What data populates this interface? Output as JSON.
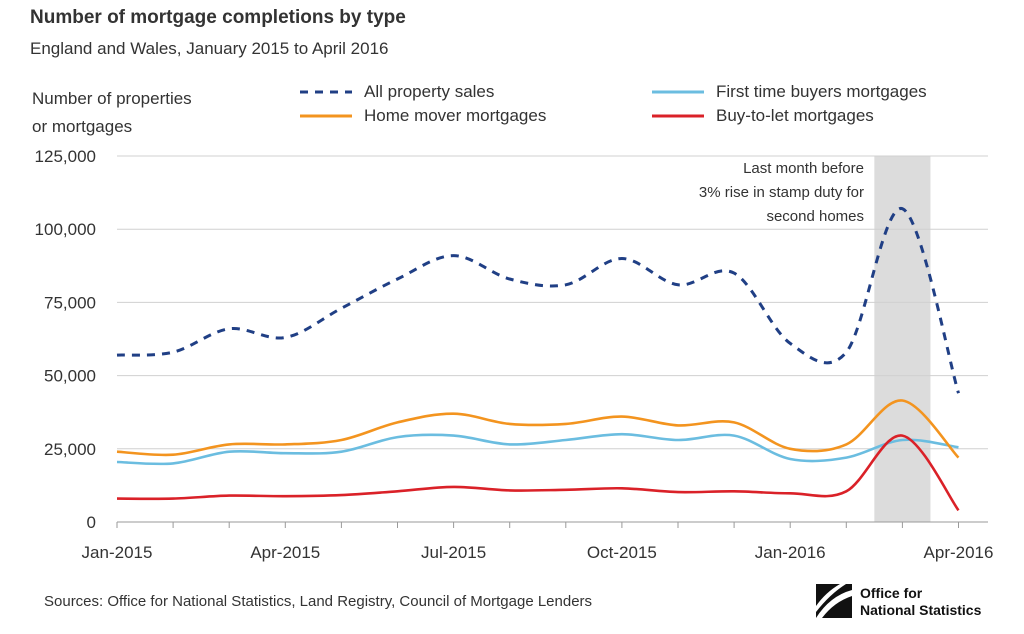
{
  "chart_data": {
    "type": "line",
    "title": "Number of mortgage completions by type",
    "subtitle": "England and Wales, January 2015 to April 2016",
    "ylabel": [
      "Number of properties",
      "or mortgages"
    ],
    "x": [
      "Jan-2015",
      "Feb-2015",
      "Mar-2015",
      "Apr-2015",
      "May-2015",
      "Jun-2015",
      "Jul-2015",
      "Aug-2015",
      "Sep-2015",
      "Oct-2015",
      "Nov-2015",
      "Dec-2015",
      "Jan-2016",
      "Feb-2016",
      "Mar-2016",
      "Apr-2016"
    ],
    "xticks": [
      "Jan-2015",
      "Apr-2015",
      "Jul-2015",
      "Oct-2015",
      "Jan-2016",
      "Apr-2016"
    ],
    "ylim": [
      0,
      125000
    ],
    "yticks": [
      0,
      25000,
      50000,
      75000,
      100000,
      125000
    ],
    "ytick_labels": [
      "0",
      "25,000",
      "50,000",
      "75,000",
      "100,000",
      "125,000"
    ],
    "grid": true,
    "legend_position": "top",
    "series": [
      {
        "name": "All property sales",
        "color": "#203f85",
        "dash": true,
        "values": [
          57000,
          58000,
          66000,
          63000,
          73000,
          83000,
          91000,
          83000,
          81000,
          90000,
          81000,
          85000,
          61000,
          58000,
          107000,
          44000
        ]
      },
      {
        "name": "First time buyers mortgages",
        "color": "#6bbde0",
        "dash": false,
        "values": [
          20500,
          20000,
          24000,
          23500,
          24000,
          29000,
          29500,
          26500,
          28000,
          30000,
          28000,
          29500,
          21500,
          22000,
          28000,
          25500
        ]
      },
      {
        "name": "Home mover mortgages",
        "color": "#f3941f",
        "dash": false,
        "values": [
          24000,
          23000,
          26500,
          26500,
          28000,
          34000,
          37000,
          33500,
          33500,
          36000,
          33000,
          34000,
          25000,
          26500,
          41500,
          22000
        ]
      },
      {
        "name": "Buy-to-let mortgages",
        "color": "#da2128",
        "dash": false,
        "values": [
          8000,
          8000,
          9000,
          8800,
          9200,
          10500,
          12000,
          10800,
          11000,
          11500,
          10200,
          10500,
          9800,
          10500,
          29500,
          4000
        ]
      }
    ],
    "legend_order": [
      0,
      1,
      2,
      3
    ],
    "highlight": {
      "from_index": 13.5,
      "to_index": 14.5,
      "color": "#dcdcdc"
    },
    "annotation": [
      "Last month before",
      "3% rise in stamp duty for",
      "second homes"
    ]
  },
  "source_text": "Sources: Office for National Statistics, Land Registry, Council of Mortgage Lenders",
  "logo": {
    "line1": "Office for",
    "line2": "National Statistics"
  }
}
